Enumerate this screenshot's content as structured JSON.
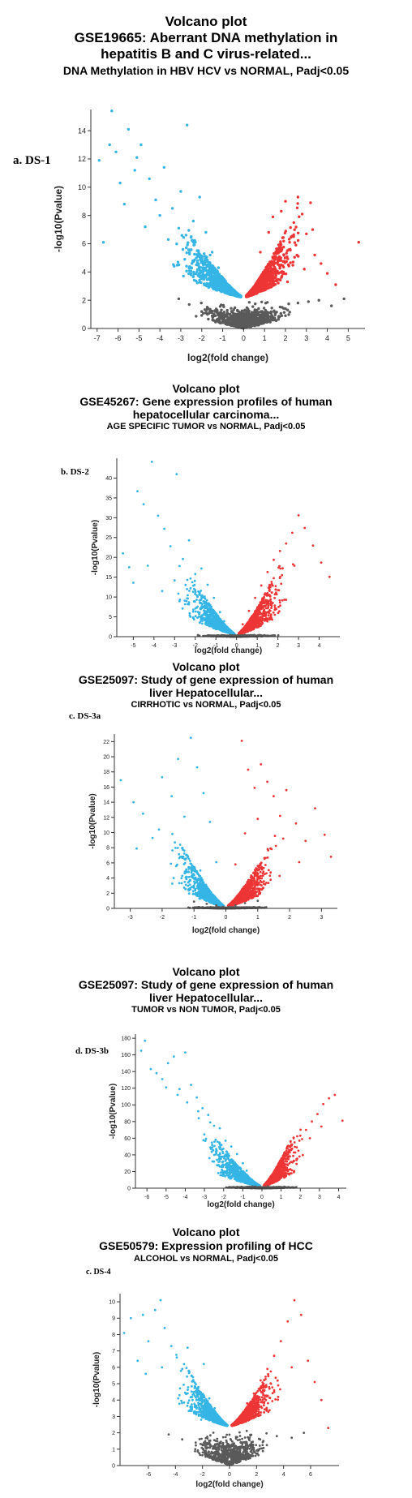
{
  "colors": {
    "down": "#35b5e5",
    "up": "#ed3536",
    "ns": "#5a5a5a",
    "axis": "#333333"
  },
  "panels": [
    {
      "title": "Volcano plot",
      "line1": "GSE19665: Aberrant DNA methylation in",
      "line2": "hepatitis B and C virus-related...",
      "subtitle": "DNA Methylation in HBV HCV vs NORMAL, Padj<0.05",
      "label": "a. DS-1"
    },
    {
      "title": "Volcano plot",
      "line1": "GSE45267: Gene expression profiles of human",
      "line2": "hepatocellular carcinoma...",
      "subtitle": "AGE SPECIFIC TUMOR vs NORMAL, Padj<0.05",
      "label": "b. DS-2"
    },
    {
      "title": "Volcano plot",
      "line1": "GSE25097: Study of gene expression of human",
      "line2": "liver Hepatocellular...",
      "subtitle": "CIRRHOTIC vs NORMAL, Padj<0.05",
      "label": "c. DS-3a"
    },
    {
      "title": "Volcano plot",
      "line1": "GSE25097: Study of gene expression of human",
      "line2": "liver Hepatocellular...",
      "subtitle": "TUMOR vs NON TUMOR, Padj<0.05",
      "label": "d. DS-3b"
    },
    {
      "title": "Volcano plot",
      "line1": "GSE50579: Expression profiling of HCC",
      "line2": "",
      "subtitle": "ALCOHOL vs NORMAL, Padj<0.05",
      "label": "c. DS-4"
    }
  ],
  "chart_data": [
    {
      "type": "scatter",
      "xlabel": "log2(fold change)",
      "ylabel": "-log10(Pvalue)",
      "xlim": [
        -7.3,
        5.8
      ],
      "ylim": [
        0,
        15.5
      ],
      "xticks": [
        -7,
        -6,
        -5,
        -4,
        -3,
        -2,
        -1,
        0,
        1,
        2,
        3,
        4,
        5
      ],
      "yticks": [
        0,
        2,
        4,
        6,
        8,
        10,
        12,
        14
      ],
      "threshold": 2.2,
      "series": [
        {
          "group": "down",
          "x": [
            -6.7,
            -6.3,
            -6.1,
            -5.9,
            -5.5,
            -5.2,
            -4.9,
            -4.5,
            -4.2,
            -3.8,
            -3.4,
            -3.0,
            -2.7,
            -2.4,
            -2.1,
            -1.8,
            -1.5,
            -1.2,
            -1.0,
            -0.8,
            -6.9,
            -6.4,
            -5.7,
            -5.1,
            -4.7,
            -4.0,
            -3.6,
            -3.1,
            -2.9,
            -2.5,
            -2.2,
            -1.9,
            -1.6,
            -1.3,
            -1.1
          ],
          "y": [
            6.1,
            15.4,
            12.5,
            10.3,
            14.1,
            11.2,
            13.0,
            10.6,
            9.1,
            11.4,
            8.5,
            9.7,
            14.4,
            7.6,
            9.3,
            6.8,
            5.4,
            4.3,
            3.6,
            3.1,
            11.9,
            13.0,
            8.8,
            12.1,
            7.2,
            8.0,
            6.3,
            7.1,
            5.6,
            6.5,
            4.8,
            4.1,
            5.2,
            3.4,
            2.9
          ]
        },
        {
          "group": "up",
          "x": [
            0.6,
            0.8,
            1.0,
            1.2,
            1.4,
            1.6,
            1.8,
            2.0,
            2.2,
            2.4,
            2.6,
            2.8,
            3.0,
            3.2,
            3.4,
            3.7,
            4.0,
            4.4,
            5.5,
            0.9,
            1.3,
            1.7,
            2.1,
            2.5,
            2.9,
            3.3
          ],
          "y": [
            3.2,
            5.4,
            4.1,
            6.8,
            7.9,
            5.6,
            8.3,
            9.0,
            6.1,
            7.5,
            9.3,
            8.1,
            6.7,
            8.9,
            5.2,
            4.6,
            3.9,
            3.1,
            6.1,
            2.8,
            3.7,
            4.5,
            3.3,
            5.9,
            4.2,
            7.0
          ],
          "note": ""
        },
        {
          "group": "ns",
          "x": [
            -3.1,
            -2.6,
            -2.0,
            -1.5,
            -1.0,
            -0.6,
            -0.3,
            0.0,
            0.3,
            0.6,
            1.0,
            1.5,
            2.0,
            2.6,
            3.1,
            3.6,
            4.2,
            4.8
          ],
          "y": [
            2.1,
            1.7,
            1.2,
            0.9,
            0.6,
            0.4,
            0.3,
            0.1,
            0.3,
            0.5,
            0.8,
            1.1,
            1.4,
            1.8,
            1.9,
            2.0,
            1.6,
            2.1
          ]
        }
      ]
    },
    {
      "type": "scatter",
      "xlabel": "log2(fold change)",
      "ylabel": "-log10(Pvalue)",
      "xlim": [
        -5.8,
        5.0
      ],
      "ylim": [
        0,
        45
      ],
      "xticks": [
        -5,
        -4,
        -3,
        -2,
        -1,
        0,
        1,
        2,
        3,
        4
      ],
      "yticks": [
        0,
        5,
        10,
        15,
        20,
        25,
        30,
        35,
        40
      ],
      "threshold": 0.5,
      "series": [
        {
          "group": "down",
          "x": [
            -5.5,
            -5.2,
            -4.8,
            -4.5,
            -4.1,
            -3.8,
            -3.5,
            -3.2,
            -2.9,
            -2.6,
            -2.3,
            -2.0,
            -1.7,
            -1.4,
            -1.1,
            -0.8,
            -0.6,
            -5.0,
            -4.3,
            -3.6,
            -3.0,
            -2.4,
            -1.8
          ],
          "y": [
            21.0,
            17.5,
            36.7,
            33.4,
            44.1,
            30.5,
            27.2,
            22.8,
            41.0,
            19.6,
            24.3,
            15.8,
            17.2,
            13.1,
            9.8,
            6.2,
            3.9,
            13.6,
            17.9,
            11.5,
            14.2,
            12.0,
            9.1
          ]
        },
        {
          "group": "up",
          "x": [
            0.3,
            0.6,
            0.9,
            1.2,
            1.5,
            1.8,
            2.1,
            2.4,
            2.7,
            3.0,
            3.3,
            3.7,
            4.1,
            4.5,
            1.0,
            1.6,
            2.2,
            2.8
          ],
          "y": [
            3.1,
            6.5,
            9.8,
            12.9,
            16.3,
            19.4,
            21.6,
            23.5,
            26.2,
            30.6,
            27.4,
            23.0,
            18.7,
            15.1,
            7.1,
            12.0,
            15.5,
            17.9
          ]
        },
        {
          "group": "ns",
          "x": [
            -0.3,
            -0.1,
            0.1,
            0.2
          ],
          "y": [
            0.4,
            0.2,
            0.1,
            0.3
          ]
        }
      ]
    },
    {
      "type": "scatter",
      "xlabel": "log2(fold change)",
      "ylabel": "-log10(Pvalue)",
      "xlim": [
        -3.5,
        3.5
      ],
      "ylim": [
        0,
        23
      ],
      "xticks": [
        -3,
        -2,
        -1,
        0,
        1,
        2,
        3
      ],
      "yticks": [
        0,
        2,
        4,
        6,
        8,
        10,
        12,
        14,
        16,
        18,
        20,
        22
      ],
      "threshold": 0.2,
      "series": [
        {
          "group": "down",
          "x": [
            -3.3,
            -2.9,
            -2.6,
            -2.3,
            -2.0,
            -1.7,
            -1.5,
            -1.3,
            -1.1,
            -0.9,
            -0.7,
            -0.5,
            -0.3,
            -2.8,
            -2.1,
            -1.6,
            -1.2,
            -0.8
          ],
          "y": [
            16.9,
            14.0,
            12.5,
            9.3,
            17.3,
            14.8,
            19.7,
            12.1,
            22.5,
            18.6,
            15.2,
            11.4,
            6.1,
            7.9,
            10.4,
            8.7,
            6.9,
            5.0
          ]
        },
        {
          "group": "up",
          "x": [
            0.3,
            0.5,
            0.7,
            0.9,
            1.1,
            1.3,
            1.5,
            1.7,
            1.9,
            2.2,
            2.5,
            2.8,
            3.1,
            3.3,
            0.6,
            1.0,
            1.4,
            1.8,
            2.3
          ],
          "y": [
            5.8,
            22.1,
            18.3,
            15.9,
            19.0,
            16.7,
            14.8,
            12.2,
            15.6,
            11.2,
            8.9,
            13.2,
            9.7,
            6.8,
            9.9,
            11.8,
            7.9,
            9.2,
            6.1
          ]
        },
        {
          "group": "ns",
          "x": [
            -1.0,
            -0.6,
            -0.3,
            -0.1,
            0.1,
            0.3,
            0.6,
            1.0
          ],
          "y": [
            0.9,
            0.6,
            0.4,
            0.2,
            0.2,
            0.4,
            0.7,
            1.0
          ]
        }
      ]
    },
    {
      "type": "scatter",
      "xlabel": "log2(fold change)",
      "ylabel": "-log10(Pvalue)",
      "xlim": [
        -6.6,
        4.4
      ],
      "ylim": [
        0,
        185
      ],
      "xticks": [
        -6,
        -5,
        -4,
        -3,
        -2,
        -1,
        0,
        1,
        2,
        3,
        4
      ],
      "yticks": [
        0,
        20,
        40,
        60,
        80,
        100,
        120,
        140,
        160,
        180
      ],
      "threshold": 2.0,
      "series": [
        {
          "group": "down",
          "x": [
            -6.3,
            -6.1,
            -5.8,
            -5.5,
            -5.2,
            -4.9,
            -4.6,
            -4.3,
            -4.0,
            -3.7,
            -3.4,
            -3.1,
            -2.8,
            -2.5,
            -2.2,
            -1.9,
            -1.6,
            -1.3,
            -1.0,
            -0.8,
            -5.0,
            -4.4,
            -3.9,
            -3.3,
            -2.7
          ],
          "y": [
            165,
            177,
            143,
            138,
            131,
            150,
            158,
            119,
            163,
            124,
            109,
            96,
            88,
            75,
            72,
            57,
            50,
            41,
            30,
            21,
            121,
            112,
            103,
            84,
            79
          ]
        },
        {
          "group": "up",
          "x": [
            0.2,
            0.5,
            0.8,
            1.1,
            1.4,
            1.7,
            2.0,
            2.3,
            2.6,
            2.9,
            3.2,
            3.5,
            3.8,
            4.2,
            1.3,
            1.9,
            2.5,
            3.1
          ],
          "y": [
            4,
            15,
            26,
            39,
            46,
            55,
            63,
            70,
            80,
            89,
            101,
            108,
            112,
            81,
            32,
            45,
            60,
            74
          ]
        },
        {
          "group": "ns",
          "x": [
            -0.5,
            -0.3,
            -0.1,
            0.1,
            0.3
          ],
          "y": [
            2,
            1,
            1,
            1,
            2
          ]
        }
      ]
    },
    {
      "type": "scatter",
      "xlabel": "log2(fold change)",
      "ylabel": "-log10(Pvalue)",
      "xlim": [
        -8.1,
        8.1
      ],
      "ylim": [
        0,
        10.5
      ],
      "xticks": [
        -6,
        -4,
        -2,
        0,
        2,
        4,
        6
      ],
      "yticks": [
        0,
        1,
        2,
        3,
        4,
        5,
        6,
        7,
        8,
        9,
        10
      ],
      "threshold": 2.4,
      "series": [
        {
          "group": "down",
          "x": [
            -7.8,
            -7.3,
            -6.8,
            -6.4,
            -6.0,
            -5.5,
            -5.1,
            -4.8,
            -4.3,
            -3.9,
            -3.5,
            -3.1,
            -2.7,
            -2.3,
            -1.9,
            -1.5,
            -1.1,
            -0.8,
            -6.2,
            -5.0,
            -3.7,
            -2.9,
            -2.1
          ],
          "y": [
            8.1,
            9.0,
            6.4,
            9.2,
            7.6,
            9.5,
            10.1,
            8.4,
            7.3,
            6.6,
            5.9,
            7.2,
            5.4,
            4.8,
            6.2,
            4.1,
            3.5,
            2.9,
            5.6,
            6.0,
            4.3,
            3.6,
            2.8
          ]
        },
        {
          "group": "up",
          "x": [
            0.8,
            1.3,
            1.8,
            2.3,
            2.8,
            3.3,
            3.8,
            4.3,
            4.8,
            5.3,
            5.8,
            6.3,
            6.8,
            7.3,
            1.6,
            2.6,
            3.6,
            4.6
          ],
          "y": [
            2.9,
            3.8,
            4.4,
            5.2,
            5.9,
            6.7,
            7.6,
            8.8,
            10.1,
            9.2,
            6.4,
            5.1,
            4.0,
            2.3,
            3.3,
            4.1,
            4.9,
            6.0
          ]
        },
        {
          "group": "ns",
          "x": [
            -4.5,
            -3.5,
            -2.5,
            -1.6,
            -1.0,
            -0.5,
            0.0,
            0.5,
            1.0,
            1.6,
            2.5,
            3.5,
            4.6,
            5.5
          ],
          "y": [
            1.9,
            1.6,
            1.4,
            1.1,
            0.8,
            0.4,
            0.2,
            0.5,
            0.8,
            1.2,
            1.5,
            1.8,
            1.7,
            2.0
          ]
        }
      ]
    }
  ]
}
